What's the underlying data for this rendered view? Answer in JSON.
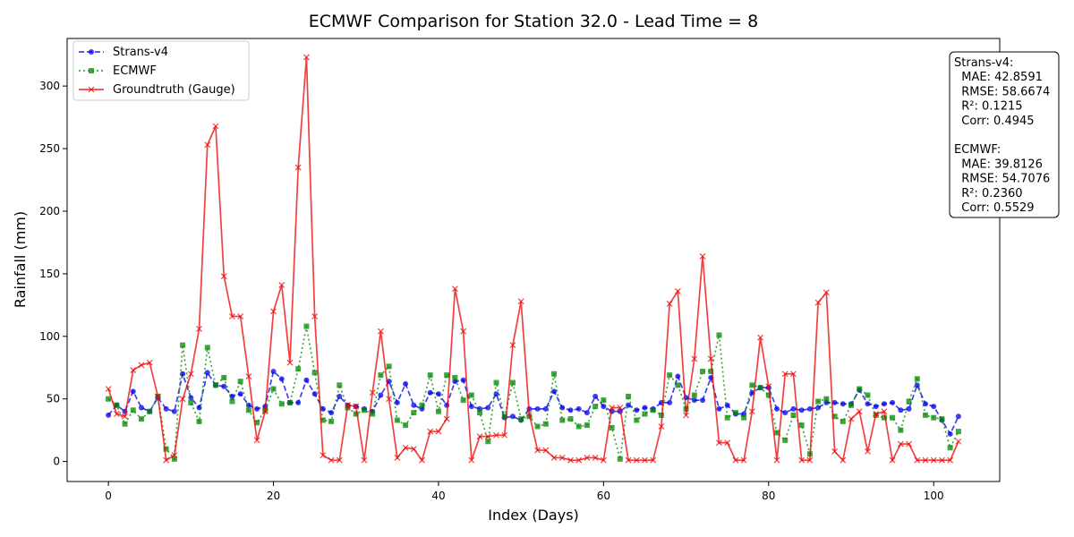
{
  "chart_data": {
    "type": "line",
    "title": "ECMWF Comparison for Station 32.0 - Lead Time = 8",
    "xlabel": "Index (Days)",
    "ylabel": "Rainfall (mm)",
    "xlim": [
      -5,
      108
    ],
    "ylim": [
      -16,
      338
    ],
    "xticks": [
      0,
      20,
      40,
      60,
      80,
      100
    ],
    "yticks": [
      0,
      50,
      100,
      150,
      200,
      250,
      300
    ],
    "grid": false,
    "legend_position": "top-left",
    "x": [
      0,
      1,
      2,
      3,
      4,
      5,
      6,
      7,
      8,
      9,
      10,
      11,
      12,
      13,
      14,
      15,
      16,
      17,
      18,
      19,
      20,
      21,
      22,
      23,
      24,
      25,
      26,
      27,
      28,
      29,
      30,
      31,
      32,
      33,
      34,
      35,
      36,
      37,
      38,
      39,
      40,
      41,
      42,
      43,
      44,
      45,
      46,
      47,
      48,
      49,
      50,
      51,
      52,
      53,
      54,
      55,
      56,
      57,
      58,
      59,
      60,
      61,
      62,
      63,
      64,
      65,
      66,
      67,
      68,
      69,
      70,
      71,
      72,
      73,
      74,
      75,
      76,
      77,
      78,
      79,
      80,
      81,
      82,
      83,
      84,
      85,
      86,
      87,
      88,
      89,
      90,
      91,
      92,
      93,
      94,
      95,
      96,
      97,
      98,
      99,
      100,
      101,
      102,
      103
    ],
    "series": [
      {
        "name": "Strans-v4",
        "color": "#0000ee",
        "style": "dashed-circle",
        "values": [
          37,
          45,
          40,
          56,
          43,
          40,
          51,
          42,
          40,
          70,
          51,
          43,
          71,
          61,
          60,
          52,
          54,
          45,
          42,
          44,
          72,
          66,
          47,
          47,
          65,
          54,
          42,
          39,
          52,
          45,
          44,
          42,
          40,
          53,
          64,
          47,
          62,
          45,
          42,
          55,
          54,
          45,
          64,
          65,
          44,
          42,
          43,
          54,
          35,
          36,
          33,
          42,
          42,
          42,
          56,
          43,
          41,
          42,
          39,
          52,
          44,
          40,
          40,
          45,
          41,
          43,
          42,
          47,
          47,
          68,
          51,
          49,
          49,
          67,
          42,
          45,
          38,
          38,
          55,
          59,
          59,
          42,
          39,
          42,
          41,
          42,
          43,
          47,
          47,
          46,
          46,
          57,
          46,
          44,
          46,
          47,
          41,
          42,
          61,
          46,
          44,
          33,
          22,
          36
        ]
      },
      {
        "name": "ECMWF",
        "color": "#008800",
        "style": "dotted-square",
        "values": [
          50,
          45,
          30,
          41,
          34,
          40,
          52,
          10,
          2,
          93,
          47,
          32,
          91,
          61,
          67,
          48,
          64,
          41,
          31,
          41,
          58,
          46,
          47,
          74,
          108,
          71,
          33,
          32,
          61,
          43,
          38,
          41,
          38,
          69,
          76,
          33,
          29,
          39,
          45,
          69,
          40,
          69,
          67,
          49,
          53,
          39,
          16,
          63,
          36,
          63,
          34,
          36,
          28,
          30,
          70,
          33,
          34,
          28,
          29,
          44,
          49,
          27,
          2,
          52,
          33,
          38,
          41,
          37,
          69,
          61,
          42,
          53,
          72,
          72,
          101,
          35,
          39,
          35,
          61,
          59,
          53,
          23,
          17,
          37,
          29,
          6,
          48,
          50,
          36,
          32,
          45,
          58,
          53,
          37,
          35,
          35,
          25,
          48,
          66,
          37,
          35,
          34,
          11,
          24
        ]
      },
      {
        "name": "Groundtruth (Gauge)",
        "color": "#ee0000",
        "style": "solid-x",
        "values": [
          58,
          38,
          36,
          73,
          77,
          79,
          52,
          1,
          5,
          50,
          70,
          106,
          253,
          268,
          148,
          116,
          116,
          68,
          17,
          40,
          120,
          141,
          79,
          235,
          323,
          116,
          5,
          1,
          1,
          45,
          44,
          1,
          55,
          104,
          50,
          3,
          11,
          10,
          1,
          24,
          24,
          34,
          138,
          104,
          1,
          20,
          20,
          21,
          21,
          93,
          128,
          38,
          9,
          9,
          3,
          3,
          1,
          1,
          3,
          3,
          1,
          43,
          43,
          1,
          1,
          1,
          1,
          28,
          126,
          136,
          37,
          82,
          164,
          82,
          15,
          15,
          1,
          1,
          40,
          99,
          60,
          1,
          70,
          70,
          1,
          1,
          127,
          135,
          8,
          1,
          34,
          40,
          8,
          38,
          40,
          1,
          14,
          14,
          1,
          1,
          1,
          1,
          1,
          16
        ]
      }
    ]
  },
  "stats_box": {
    "lines": [
      "Strans-v4:",
      "  MAE: 42.8591",
      "  RMSE: 58.6674",
      "  R²: 0.1215",
      "  Corr: 0.4945",
      "",
      "ECMWF:",
      "  MAE: 39.8126",
      "  RMSE: 54.7076",
      "  R²: 0.2360",
      "  Corr: 0.5529"
    ]
  }
}
